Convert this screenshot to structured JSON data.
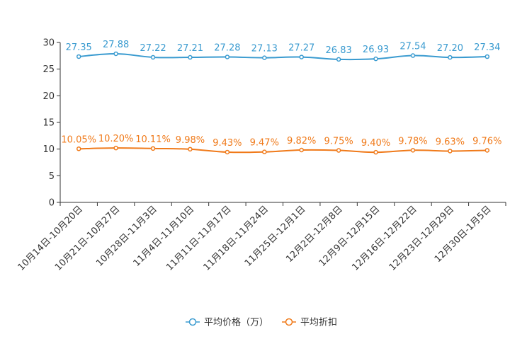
{
  "chart_data": {
    "type": "line",
    "title": "",
    "xlabel": "",
    "ylabel": "",
    "ylim": [
      0,
      30
    ],
    "yticks": [
      0,
      5,
      10,
      15,
      20,
      25,
      30
    ],
    "grid": false,
    "legend_position": "bottom-center",
    "categories": [
      "10月14日-10月20日",
      "10月21日-10月27日",
      "10月28日-11月3日",
      "11月4日-11月10日",
      "11月11日-11月17日",
      "11月18日-11月24日",
      "11月25日-12月1日",
      "12月2日-12月8日",
      "12月9日-12月15日",
      "12月16日-12月22日",
      "12月23日-12月29日",
      "12月30日-1月5日"
    ],
    "series": [
      {
        "name": "平均价格（万）",
        "color": "#3a9bd0",
        "values": [
          27.35,
          27.88,
          27.22,
          27.21,
          27.28,
          27.13,
          27.27,
          26.83,
          26.93,
          27.54,
          27.2,
          27.34
        ],
        "labels": [
          "27.35",
          "27.88",
          "27.22",
          "27.21",
          "27.28",
          "27.13",
          "27.27",
          "26.83",
          "26.93",
          "27.54",
          "27.20",
          "27.34"
        ]
      },
      {
        "name": "平均折扣",
        "color": "#f07a1a",
        "values": [
          10.05,
          10.2,
          10.11,
          9.98,
          9.43,
          9.47,
          9.82,
          9.75,
          9.4,
          9.78,
          9.63,
          9.76
        ],
        "labels": [
          "10.05%",
          "10.20%",
          "10.11%",
          "9.98%",
          "9.43%",
          "9.47%",
          "9.82%",
          "9.75%",
          "9.40%",
          "9.78%",
          "9.63%",
          "9.76%"
        ]
      }
    ]
  }
}
